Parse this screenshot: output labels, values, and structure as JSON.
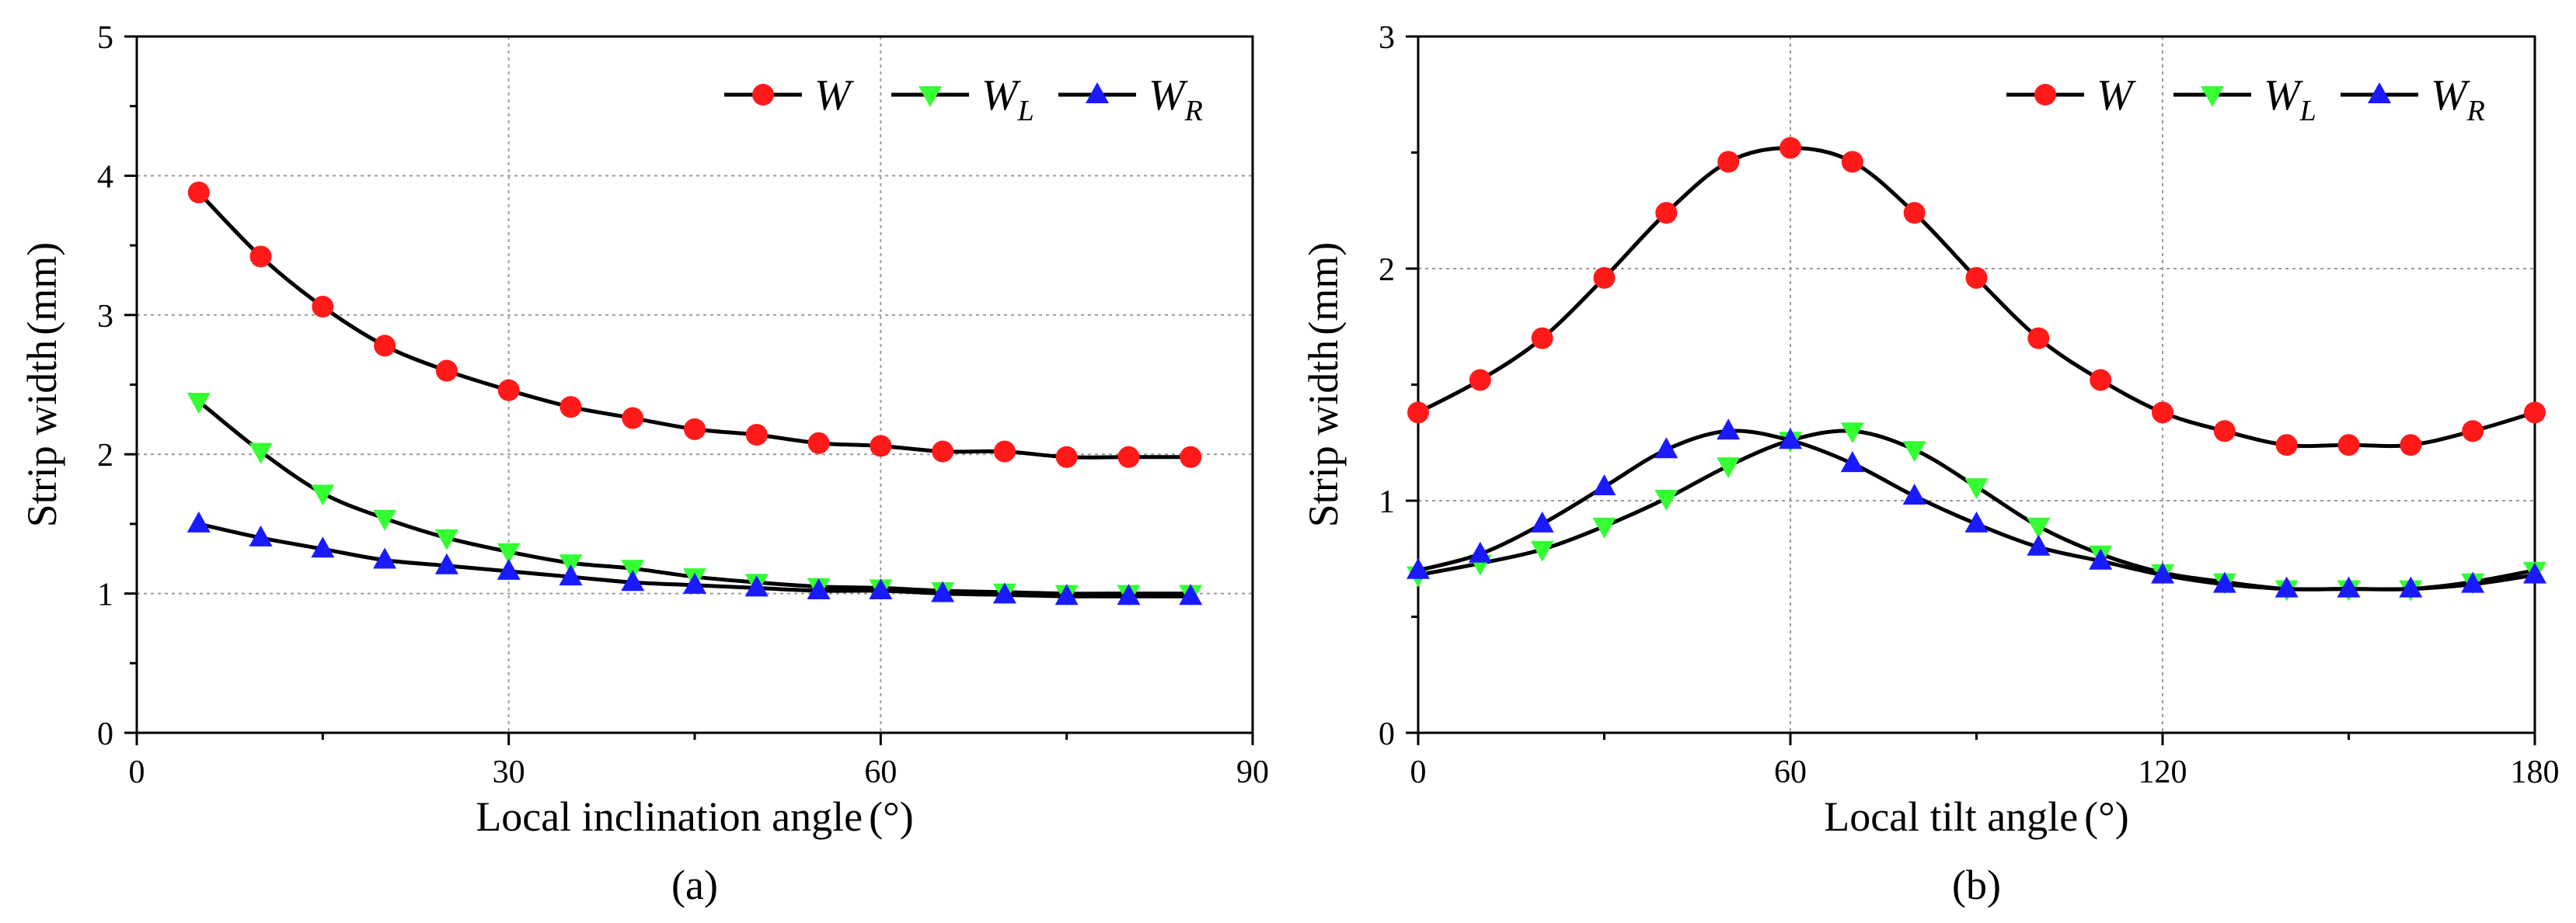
{
  "chart_data": [
    {
      "type": "line",
      "panel_label": "(a)",
      "xlabel": "Local inclination angle",
      "xlabel_unit": "(°)",
      "ylabel": "Strip width",
      "ylabel_unit": "(mm)",
      "xlim": [
        0,
        90
      ],
      "ylim": [
        0,
        5
      ],
      "xticks": [
        0,
        30,
        60,
        90
      ],
      "yticks": [
        0,
        1,
        2,
        3,
        4,
        5
      ],
      "grid": true,
      "legend_position": "top-right",
      "x": [
        5,
        10,
        15,
        20,
        25,
        30,
        35,
        40,
        45,
        50,
        55,
        60,
        65,
        70,
        75,
        80,
        85
      ],
      "series": [
        {
          "name": "W",
          "sub": "",
          "marker": "circle",
          "color": "#ff1a1a",
          "values": [
            3.88,
            3.42,
            3.06,
            2.78,
            2.6,
            2.46,
            2.34,
            2.26,
            2.18,
            2.14,
            2.08,
            2.06,
            2.02,
            2.02,
            1.98,
            1.98,
            1.98
          ]
        },
        {
          "name": "W",
          "sub": "L",
          "marker": "triangle-down",
          "color": "#33ff33",
          "values": [
            2.38,
            2.02,
            1.72,
            1.54,
            1.4,
            1.3,
            1.22,
            1.18,
            1.12,
            1.08,
            1.05,
            1.04,
            1.02,
            1.01,
            1.0,
            1.0,
            1.0
          ]
        },
        {
          "name": "W",
          "sub": "R",
          "marker": "triangle-up",
          "color": "#1a1aff",
          "values": [
            1.5,
            1.4,
            1.32,
            1.24,
            1.2,
            1.16,
            1.12,
            1.08,
            1.06,
            1.04,
            1.02,
            1.02,
            1.0,
            0.99,
            0.98,
            0.98,
            0.98
          ]
        }
      ]
    },
    {
      "type": "line",
      "panel_label": "(b)",
      "xlabel": "Local tilt angle",
      "xlabel_unit": "(°)",
      "ylabel": "Strip width",
      "ylabel_unit": "(mm)",
      "xlim": [
        0,
        180
      ],
      "ylim": [
        0,
        3
      ],
      "xticks": [
        0,
        60,
        120,
        180
      ],
      "yticks": [
        0,
        1,
        2,
        3
      ],
      "grid": true,
      "legend_position": "top-right",
      "x": [
        0,
        10,
        20,
        30,
        40,
        50,
        60,
        70,
        80,
        90,
        100,
        110,
        120,
        130,
        140,
        150,
        160,
        170,
        180
      ],
      "series": [
        {
          "name": "W",
          "sub": "",
          "marker": "circle",
          "color": "#ff1a1a",
          "values": [
            1.38,
            1.52,
            1.7,
            1.96,
            2.24,
            2.46,
            2.52,
            2.46,
            2.24,
            1.96,
            1.7,
            1.52,
            1.38,
            1.3,
            1.24,
            1.24,
            1.24,
            1.3,
            1.38
          ]
        },
        {
          "name": "W",
          "sub": "L",
          "marker": "triangle-down",
          "color": "#33ff33",
          "values": [
            0.68,
            0.73,
            0.79,
            0.89,
            1.01,
            1.15,
            1.26,
            1.3,
            1.22,
            1.06,
            0.89,
            0.77,
            0.69,
            0.65,
            0.62,
            0.62,
            0.62,
            0.65,
            0.7
          ]
        },
        {
          "name": "W",
          "sub": "R",
          "marker": "triangle-up",
          "color": "#1a1aff",
          "values": [
            0.7,
            0.77,
            0.9,
            1.06,
            1.22,
            1.3,
            1.26,
            1.16,
            1.02,
            0.9,
            0.8,
            0.74,
            0.68,
            0.64,
            0.62,
            0.62,
            0.62,
            0.64,
            0.68
          ]
        }
      ]
    }
  ]
}
